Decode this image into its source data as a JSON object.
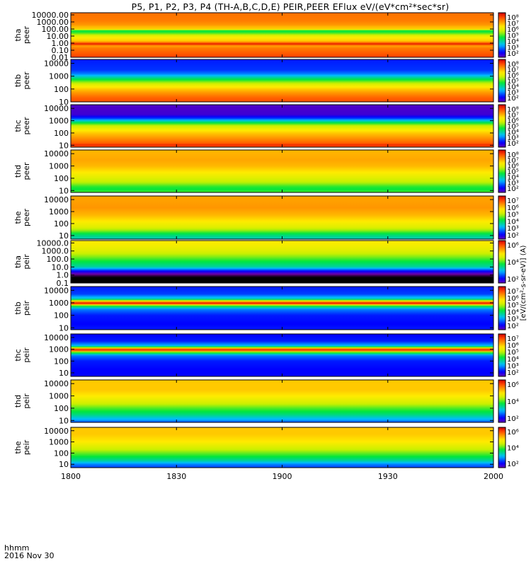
{
  "title": "P5, P1, P2, P3, P4 (TH-A,B,C,D,E) PEIR,PEER EFlux eV/(eV*cm²*sec*sr)",
  "time_axis": {
    "unit_label": "hhmm",
    "date_label": "2016 Nov 30"
  },
  "colorbar_unit": "[eV/(cm²-s-sr-eV)] (A)",
  "colors": {
    "panel_border": "#000000",
    "sat_fill": "#d40000"
  },
  "chart_data": [
    {
      "type": "heatmap",
      "name": "tha peer",
      "ylabel": [
        "tha",
        "peer"
      ],
      "x": {
        "range": [
          "1800",
          "2000"
        ],
        "ticks": [
          "1800",
          "1830",
          "1900",
          "1930",
          "2000"
        ]
      },
      "y": {
        "scale": "log",
        "range": [
          0.01,
          20000
        ],
        "ticks": [
          "10000.00",
          "1000.00",
          "100.00",
          "10.00",
          "1.00",
          "0.10",
          "0.01"
        ]
      },
      "colorbar": {
        "scale": "log",
        "ticks": [
          "10⁸",
          "10⁷",
          "10⁶",
          "10⁵",
          "10⁴",
          "10³",
          "10²"
        ]
      },
      "profile": [
        [
          0.01,
          0.92
        ],
        [
          0.02,
          0.9
        ],
        [
          0.05,
          0.88
        ],
        [
          0.2,
          0.85
        ],
        [
          0.3,
          0.82
        ],
        [
          0.5,
          0.8
        ],
        [
          0.6,
          0.95
        ],
        [
          0.9,
          0.97
        ],
        [
          1.2,
          0.85
        ],
        [
          2,
          0.76
        ],
        [
          6,
          0.72
        ],
        [
          12,
          0.66
        ],
        [
          20,
          0.58
        ],
        [
          40,
          0.5
        ],
        [
          60,
          0.52
        ],
        [
          100,
          0.78
        ],
        [
          150,
          0.76
        ],
        [
          400,
          0.82
        ],
        [
          1500,
          0.85
        ],
        [
          20000,
          0.86
        ]
      ]
    },
    {
      "type": "heatmap",
      "name": "thb peer",
      "ylabel": [
        "thb",
        "peer"
      ],
      "x": {
        "range": [
          "1800",
          "2000"
        ],
        "ticks": [
          "1800",
          "1830",
          "1900",
          "1930",
          "2000"
        ]
      },
      "y": {
        "scale": "log",
        "range": [
          10,
          20000
        ],
        "ticks": [
          "10000",
          "1000",
          "100",
          "10"
        ]
      },
      "colorbar": {
        "scale": "log",
        "ticks": [
          "10⁸",
          "10⁷",
          "10⁶",
          "10⁵",
          "10⁴",
          "10³",
          "10²"
        ]
      },
      "profile": [
        [
          10,
          0.9
        ],
        [
          20,
          0.88
        ],
        [
          50,
          0.82
        ],
        [
          100,
          0.76
        ],
        [
          200,
          0.68
        ],
        [
          400,
          0.56
        ],
        [
          800,
          0.42
        ],
        [
          1500,
          0.3
        ],
        [
          3000,
          0.24
        ],
        [
          20000,
          0.22
        ]
      ]
    },
    {
      "type": "heatmap",
      "name": "thc peer",
      "ylabel": [
        "thc",
        "peer"
      ],
      "x": {
        "range": [
          "1800",
          "2000"
        ],
        "ticks": [
          "1800",
          "1830",
          "1900",
          "1930",
          "2000"
        ]
      },
      "y": {
        "scale": "log",
        "range": [
          7,
          20000
        ],
        "ticks": [
          "10000",
          "1000",
          "100",
          "10"
        ]
      },
      "colorbar": {
        "scale": "log",
        "ticks": [
          "10⁸",
          "10⁷",
          "10⁶",
          "10⁵",
          "10⁴",
          "10³",
          "10²"
        ]
      },
      "profile": [
        [
          7,
          0.88
        ],
        [
          10,
          0.95
        ],
        [
          15,
          0.88
        ],
        [
          40,
          0.82
        ],
        [
          100,
          0.76
        ],
        [
          200,
          0.7
        ],
        [
          400,
          0.62
        ],
        [
          800,
          0.45
        ],
        [
          1500,
          0.25
        ],
        [
          3000,
          0.14
        ],
        [
          20000,
          0.12
        ]
      ]
    },
    {
      "type": "heatmap",
      "name": "thd peer",
      "ylabel": [
        "thd",
        "peer"
      ],
      "x": {
        "range": [
          "1800",
          "2000"
        ],
        "ticks": [
          "1800",
          "1830",
          "1900",
          "1930",
          "2000"
        ]
      },
      "y": {
        "scale": "log",
        "range": [
          7,
          20000
        ],
        "ticks": [
          "10000",
          "1000",
          "100",
          "10"
        ]
      },
      "colorbar": {
        "scale": "log",
        "ticks": [
          "10⁸",
          "10⁷",
          "10⁶",
          "10⁵",
          "10⁴",
          "10³",
          "10²"
        ]
      },
      "profile": [
        [
          7,
          0.55
        ],
        [
          12,
          0.5
        ],
        [
          20,
          0.52
        ],
        [
          40,
          0.6
        ],
        [
          100,
          0.66
        ],
        [
          300,
          0.72
        ],
        [
          1000,
          0.78
        ],
        [
          3000,
          0.8
        ],
        [
          20000,
          0.78
        ]
      ]
    },
    {
      "type": "heatmap",
      "name": "the peer",
      "ylabel": [
        "the",
        "peer"
      ],
      "x": {
        "range": [
          "1800",
          "2000"
        ],
        "ticks": [
          "1800",
          "1830",
          "1900",
          "1930",
          "2000"
        ]
      },
      "y": {
        "scale": "log",
        "range": [
          5,
          20000
        ],
        "ticks": [
          "10000",
          "1000",
          "100",
          "10"
        ]
      },
      "colorbar": {
        "scale": "log",
        "ticks": [
          "10⁷",
          "10⁶",
          "10⁵",
          "10⁴",
          "10³",
          "10²"
        ]
      },
      "profile": [
        [
          5,
          0.4
        ],
        [
          10,
          0.45
        ],
        [
          15,
          0.5
        ],
        [
          25,
          0.58
        ],
        [
          50,
          0.66
        ],
        [
          150,
          0.72
        ],
        [
          500,
          0.78
        ],
        [
          2000,
          0.82
        ],
        [
          20000,
          0.8
        ]
      ]
    },
    {
      "type": "heatmap",
      "name": "tha peir",
      "ylabel": [
        "tha",
        "peir"
      ],
      "x": {
        "range": [
          "1800",
          "2000"
        ],
        "ticks": [
          "1800",
          "1830",
          "1900",
          "1930",
          "2000"
        ]
      },
      "y": {
        "scale": "log",
        "range": [
          0.1,
          20000
        ],
        "ticks": [
          "10000.0",
          "1000.0",
          "100.0",
          "10.0",
          "1.0",
          "0.1"
        ]
      },
      "colorbar": {
        "scale": "log",
        "ticks": [
          "10⁶",
          "10⁴",
          "10²"
        ]
      },
      "profile": [
        [
          0.1,
          0.0
        ],
        [
          0.5,
          0.0
        ],
        [
          1,
          0.05
        ],
        [
          3,
          0.2
        ],
        [
          10,
          0.42
        ],
        [
          50,
          0.5
        ],
        [
          200,
          0.58
        ],
        [
          1000,
          0.66
        ],
        [
          5000,
          0.7
        ],
        [
          20000,
          0.72
        ]
      ]
    },
    {
      "type": "heatmap",
      "name": "thb peir",
      "ylabel": [
        "thb",
        "peir"
      ],
      "x": {
        "range": [
          "1800",
          "2000"
        ],
        "ticks": [
          "1800",
          "1830",
          "1900",
          "1930",
          "2000"
        ]
      },
      "y": {
        "scale": "log",
        "range": [
          7,
          20000
        ],
        "ticks": [
          "10000",
          "1000",
          "100",
          "10"
        ]
      },
      "colorbar": {
        "scale": "log",
        "ticks": [
          "10⁷",
          "10⁶",
          "10⁵",
          "10⁴",
          "10³",
          "10²"
        ]
      },
      "profile": [
        [
          7,
          0.22
        ],
        [
          20,
          0.2
        ],
        [
          100,
          0.22
        ],
        [
          300,
          0.3
        ],
        [
          600,
          0.55
        ],
        [
          800,
          0.92
        ],
        [
          1000,
          0.95
        ],
        [
          1300,
          0.75
        ],
        [
          2000,
          0.4
        ],
        [
          5000,
          0.25
        ],
        [
          20000,
          0.22
        ]
      ]
    },
    {
      "type": "heatmap",
      "name": "thc peir",
      "ylabel": [
        "thc",
        "peir"
      ],
      "x": {
        "range": [
          "1800",
          "2000"
        ],
        "ticks": [
          "1800",
          "1830",
          "1900",
          "1930",
          "2000"
        ]
      },
      "y": {
        "scale": "log",
        "range": [
          5,
          20000
        ],
        "ticks": [
          "10000",
          "1000",
          "100",
          "10"
        ]
      },
      "colorbar": {
        "scale": "log",
        "ticks": [
          "10⁷",
          "10⁶",
          "10⁵",
          "10⁴",
          "10³",
          "10²"
        ]
      },
      "profile": [
        [
          5,
          0.2
        ],
        [
          20,
          0.2
        ],
        [
          100,
          0.22
        ],
        [
          300,
          0.3
        ],
        [
          600,
          0.6
        ],
        [
          800,
          0.95
        ],
        [
          1000,
          0.95
        ],
        [
          1300,
          0.65
        ],
        [
          2000,
          0.35
        ],
        [
          5000,
          0.22
        ],
        [
          20000,
          0.2
        ]
      ]
    },
    {
      "type": "heatmap",
      "name": "thd peir",
      "ylabel": [
        "thd",
        "peir"
      ],
      "x": {
        "range": [
          "1800",
          "2000"
        ],
        "ticks": [
          "1800",
          "1830",
          "1900",
          "1930",
          "2000"
        ]
      },
      "y": {
        "scale": "log",
        "range": [
          7,
          20000
        ],
        "ticks": [
          "10000",
          "1000",
          "100",
          "10"
        ]
      },
      "colorbar": {
        "scale": "log",
        "ticks": [
          "10⁶",
          "10⁴",
          "10²"
        ]
      },
      "profile": [
        [
          7,
          0.25
        ],
        [
          10,
          0.32
        ],
        [
          30,
          0.45
        ],
        [
          100,
          0.55
        ],
        [
          300,
          0.65
        ],
        [
          1000,
          0.72
        ],
        [
          3000,
          0.76
        ],
        [
          20000,
          0.76
        ]
      ]
    },
    {
      "type": "heatmap",
      "name": "the peir",
      "ylabel": [
        "the",
        "peir"
      ],
      "x": {
        "range": [
          "1800",
          "2000"
        ],
        "ticks": [
          "1800",
          "1830",
          "1900",
          "1930",
          "2000"
        ]
      },
      "y": {
        "scale": "log",
        "range": [
          5,
          20000
        ],
        "ticks": [
          "10000",
          "1000",
          "100",
          "10"
        ]
      },
      "colorbar": {
        "scale": "log",
        "ticks": [
          "10⁶",
          "10⁴",
          "10²"
        ]
      },
      "profile": [
        [
          5,
          0.25
        ],
        [
          10,
          0.3
        ],
        [
          20,
          0.42
        ],
        [
          60,
          0.52
        ],
        [
          200,
          0.62
        ],
        [
          1000,
          0.72
        ],
        [
          5000,
          0.76
        ],
        [
          20000,
          0.76
        ]
      ]
    }
  ]
}
